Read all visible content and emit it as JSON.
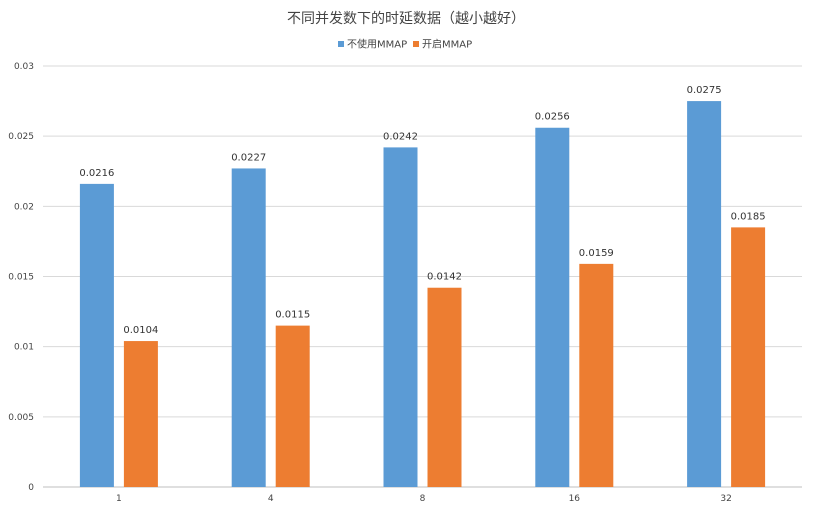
{
  "chart_data": {
    "type": "bar",
    "title": "不同并发数下的时延数据（越小越好）",
    "xlabel": "",
    "ylabel": "",
    "categories": [
      "1",
      "4",
      "8",
      "16",
      "32"
    ],
    "series": [
      {
        "name": "不使用MMAP",
        "color": "#5b9bd5",
        "values": [
          0.0216,
          0.0227,
          0.0242,
          0.0256,
          0.0275
        ]
      },
      {
        "name": "开启MMAP",
        "color": "#ed7d31",
        "values": [
          0.0104,
          0.0115,
          0.0142,
          0.0159,
          0.0185
        ]
      }
    ],
    "ylim": [
      0,
      0.03
    ],
    "yticks": [
      "0",
      "0.005",
      "0.01",
      "0.015",
      "0.02",
      "0.025",
      "0.03"
    ],
    "grid": true,
    "legend_position": "top-center",
    "data_labels": true
  }
}
